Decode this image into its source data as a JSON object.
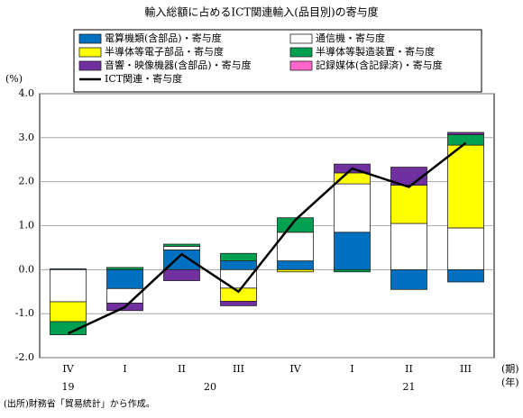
{
  "chart_data": {
    "type": "bar",
    "stacked": true,
    "title": "輸入総額に占めるICT関連輸入(品目別)の寄与度",
    "y_unit": "(%)",
    "x_units": [
      "(期)",
      "(年)"
    ],
    "categories": [
      "IV",
      "I",
      "II",
      "III",
      "IV",
      "I",
      "II",
      "III"
    ],
    "year_groups": [
      {
        "label": "19",
        "quarters": 1
      },
      {
        "label": "20",
        "quarters": 4
      },
      {
        "label": "21",
        "quarters": 3
      }
    ],
    "series": [
      {
        "name": "電算機類(含部品)・寄与度",
        "color": "#0070c0",
        "values": [
          0.02,
          -0.43,
          0.45,
          0.2,
          0.2,
          0.85,
          -0.45,
          -0.28
        ]
      },
      {
        "name": "通信機・寄与度",
        "color": "#ffffff",
        "values": [
          -0.73,
          -0.33,
          0.08,
          -0.42,
          0.65,
          1.1,
          1.05,
          0.95
        ]
      },
      {
        "name": "半導体等電子部品・寄与度",
        "color": "#ffff00",
        "values": [
          -0.45,
          0,
          0,
          -0.3,
          -0.05,
          0.25,
          0.87,
          1.88
        ]
      },
      {
        "name": "半導体等製造装置・寄与度",
        "color": "#00a050",
        "values": [
          -0.3,
          0.05,
          0.05,
          0.17,
          0.33,
          -0.05,
          0,
          0.24
        ]
      },
      {
        "name": "音響・映像機器(含部品)・寄与度",
        "color": "#7030a0",
        "values": [
          0,
          -0.17,
          -0.25,
          -0.1,
          0,
          0.2,
          0.41,
          0.05
        ]
      },
      {
        "name": "記録媒体(含記録済)・寄与度",
        "color": "#ff66cc",
        "values": [
          0,
          0,
          0,
          0,
          0,
          0,
          0,
          0
        ]
      }
    ],
    "line": {
      "name": "ICT関連・寄与度",
      "color": "#000000",
      "values": [
        -1.45,
        -0.85,
        0.35,
        -0.5,
        1.13,
        2.3,
        1.88,
        2.88
      ]
    },
    "ylim": [
      -2,
      4
    ],
    "yticks": [
      {
        "value": -2,
        "label": "-2.0"
      },
      {
        "value": -1,
        "label": "-1.0"
      },
      {
        "value": 0,
        "label": "0.0"
      },
      {
        "value": 1,
        "label": "1.0"
      },
      {
        "value": 2,
        "label": "2.0"
      },
      {
        "value": 3,
        "label": "3.0"
      },
      {
        "value": 4,
        "label": "4.0"
      }
    ],
    "grid": true,
    "source": "(出所)財務省「貿易統計」から作成。"
  }
}
